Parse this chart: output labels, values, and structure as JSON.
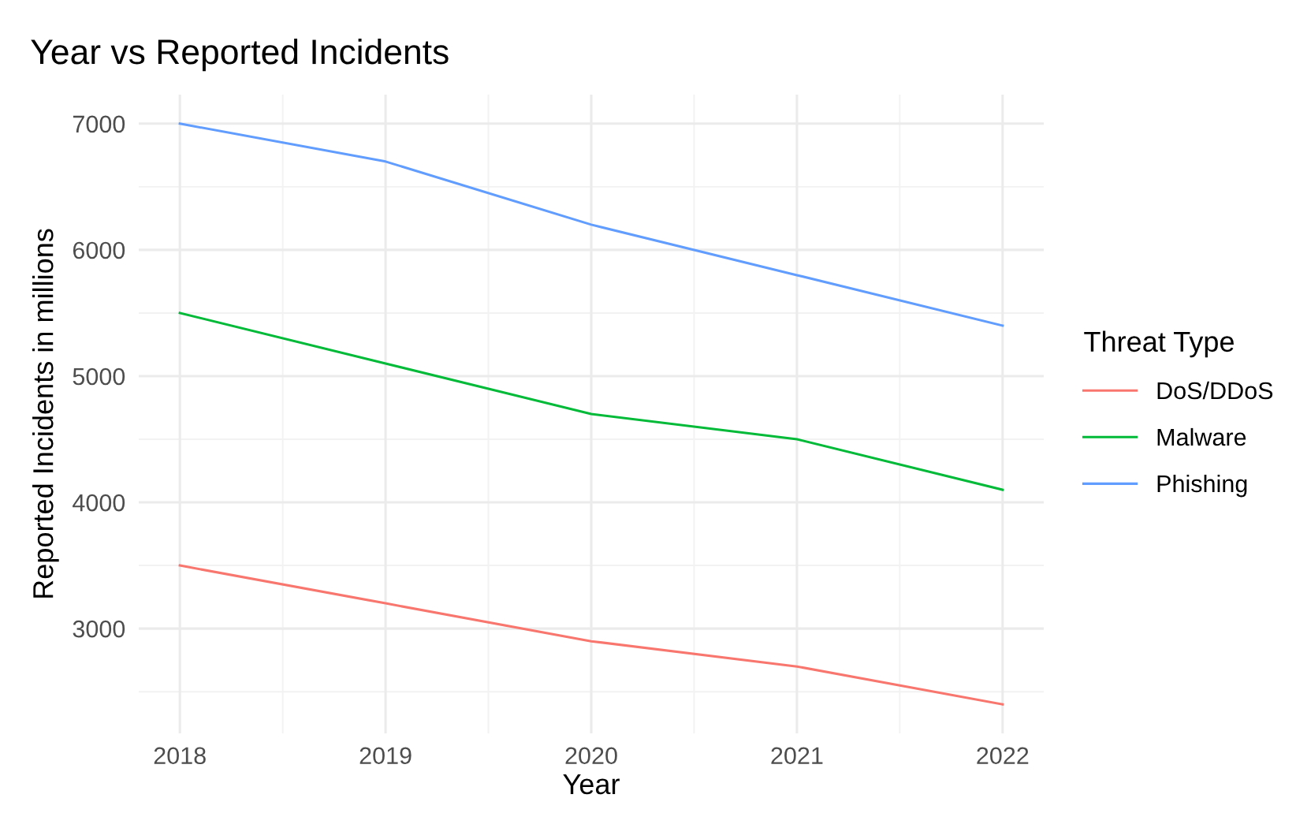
{
  "chart_data": {
    "type": "line",
    "title": "Year vs Reported Incidents",
    "xlabel": "Year",
    "ylabel": "Reported Incidents in millions",
    "legend_title": "Threat Type",
    "x": [
      2018,
      2019,
      2020,
      2021,
      2022
    ],
    "series": [
      {
        "name": "DoS/DDoS",
        "color": "#f8766d",
        "values": [
          3500,
          3200,
          2900,
          2700,
          2400
        ]
      },
      {
        "name": "Malware",
        "color": "#00ba38",
        "values": [
          5500,
          5100,
          4700,
          4500,
          4100
        ]
      },
      {
        "name": "Phishing",
        "color": "#619cff",
        "values": [
          7000,
          6700,
          6200,
          5800,
          5400
        ]
      }
    ],
    "xlim": [
      2017.8,
      2022.2
    ],
    "xticks": [
      2018,
      2019,
      2020,
      2021,
      2022
    ],
    "ylim": [
      2170,
      7230
    ],
    "yticks": [
      3000,
      4000,
      5000,
      6000,
      7000
    ],
    "grid": true,
    "legend": "right",
    "marker": "none",
    "line_style": "solid"
  }
}
